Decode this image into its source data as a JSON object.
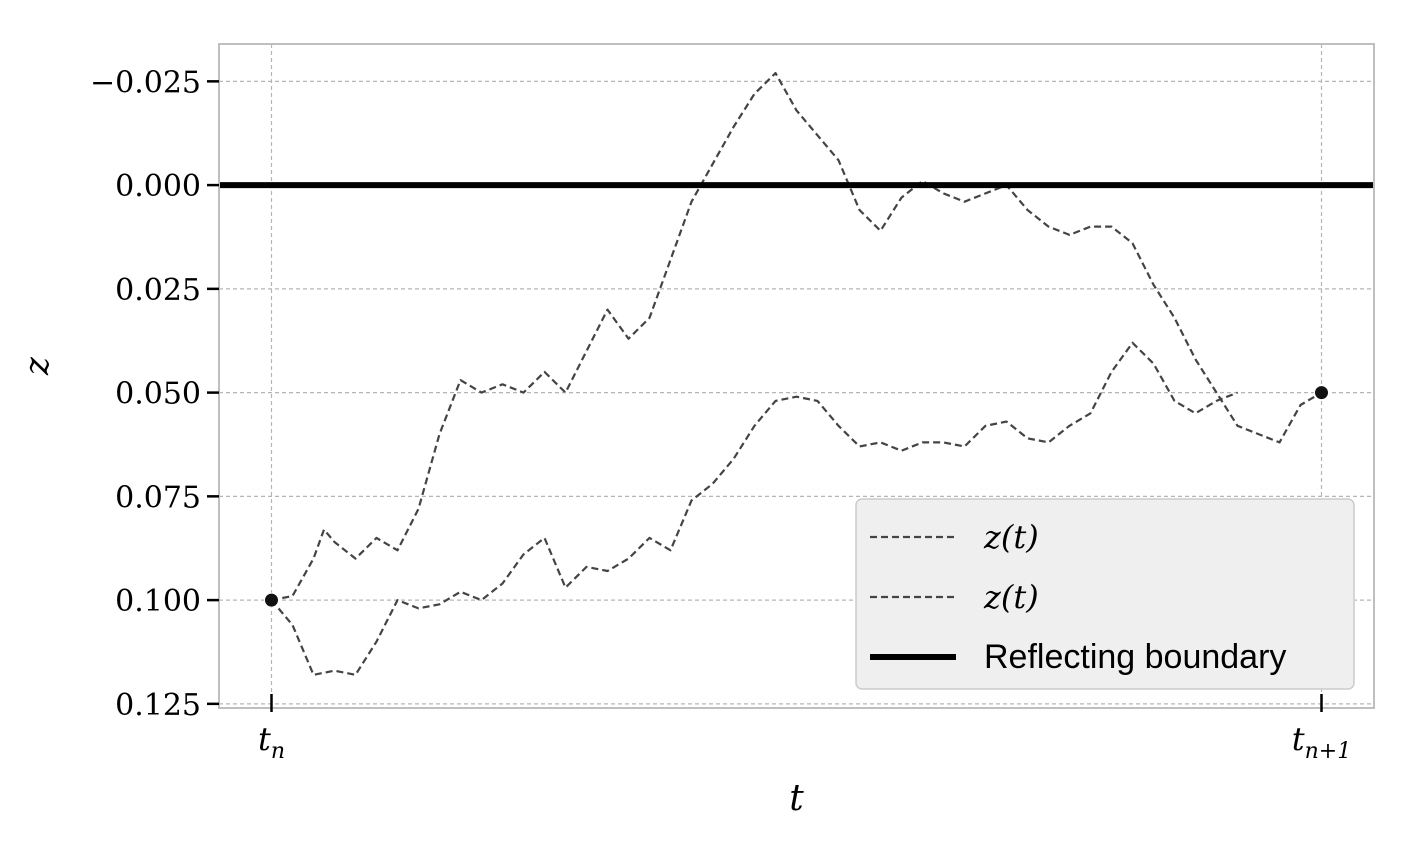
{
  "chart_data": {
    "type": "line",
    "xlabel": "t",
    "ylabel": "z",
    "x_ticks": [
      {
        "base": "t",
        "sub": "n",
        "x": 0
      },
      {
        "base": "t",
        "sub": "n+1",
        "x": 1
      }
    ],
    "xlim": [
      -0.05,
      1.05
    ],
    "ylim": [
      0.126,
      -0.034
    ],
    "y_inverted": true,
    "y_ticks": [
      "-0.025",
      "0.000",
      "0.025",
      "0.050",
      "0.075",
      "0.100",
      "0.125"
    ],
    "y_tick_values": [
      -0.025,
      0.0,
      0.025,
      0.05,
      0.075,
      0.1,
      0.125
    ],
    "grid": true,
    "legend": {
      "position": "lower-right",
      "entries": [
        {
          "label": "z(t)",
          "style": "dashed"
        },
        {
          "label": "z(t)",
          "style": "dashed"
        },
        {
          "label": "Reflecting boundary",
          "style": "solid"
        }
      ]
    },
    "boundary": {
      "name": "Reflecting boundary",
      "z": 0.0,
      "color": "#000000"
    },
    "endpoints": [
      {
        "x": 0,
        "z": 0.1
      },
      {
        "x": 1,
        "z": 0.05
      }
    ],
    "series": [
      {
        "label": "z(t)",
        "color": "#444444",
        "style": "dashed",
        "x": [
          0,
          0.02,
          0.04,
          0.05,
          0.06,
          0.08,
          0.1,
          0.12,
          0.14,
          0.16,
          0.18,
          0.2,
          0.22,
          0.24,
          0.26,
          0.28,
          0.3,
          0.32,
          0.34,
          0.36,
          0.38,
          0.4,
          0.42,
          0.44,
          0.46,
          0.48,
          0.5,
          0.52,
          0.54,
          0.56,
          0.58,
          0.6,
          0.62,
          0.64,
          0.66,
          0.68,
          0.7,
          0.72,
          0.74,
          0.76,
          0.78,
          0.8,
          0.82,
          0.84,
          0.86,
          0.88,
          0.9,
          0.92,
          0.94,
          0.96,
          0.98,
          1.0
        ],
        "z": [
          0.1,
          0.099,
          0.09,
          0.083,
          0.086,
          0.09,
          0.085,
          0.088,
          0.078,
          0.06,
          0.047,
          0.05,
          0.048,
          0.05,
          0.045,
          0.05,
          0.04,
          0.03,
          0.037,
          0.032,
          0.018,
          0.004,
          -0.005,
          -0.014,
          -0.022,
          -0.027,
          -0.018,
          -0.012,
          -0.006,
          0.006,
          0.011,
          0.003,
          -0.001,
          0.002,
          0.004,
          0.002,
          0.0,
          0.006,
          0.01,
          0.012,
          0.01,
          0.01,
          0.014,
          0.024,
          0.032,
          0.042,
          0.05,
          0.058,
          0.06,
          0.062,
          0.053,
          0.05
        ]
      },
      {
        "label": "z(t)",
        "color": "#444444",
        "style": "dashed",
        "x": [
          0,
          0.02,
          0.04,
          0.06,
          0.08,
          0.1,
          0.12,
          0.14,
          0.16,
          0.18,
          0.2,
          0.22,
          0.24,
          0.26,
          0.28,
          0.3,
          0.32,
          0.34,
          0.36,
          0.38,
          0.4,
          0.42,
          0.44,
          0.46,
          0.48,
          0.5,
          0.52,
          0.54,
          0.56,
          0.58,
          0.6,
          0.62,
          0.64,
          0.66,
          0.68,
          0.7,
          0.72,
          0.74,
          0.76,
          0.78,
          0.8,
          0.82,
          0.84,
          0.86,
          0.88,
          0.9,
          0.92,
          0.94,
          0.96,
          0.98,
          1.0
        ],
        "z": [
          0.1,
          0.106,
          0.118,
          0.117,
          0.118,
          0.11,
          0.1,
          0.102,
          0.101,
          0.098,
          0.1,
          0.096,
          0.089,
          0.085,
          0.097,
          0.092,
          0.093,
          0.09,
          0.085,
          0.088,
          0.076,
          0.072,
          0.066,
          0.058,
          0.052,
          0.051,
          0.052,
          0.058,
          0.063,
          0.062,
          0.064,
          0.062,
          0.062,
          0.063,
          0.058,
          0.057,
          0.061,
          0.062,
          0.058,
          0.055,
          0.045,
          0.038,
          0.043,
          0.052,
          0.055,
          0.052,
          0.05
        ]
      }
    ]
  }
}
